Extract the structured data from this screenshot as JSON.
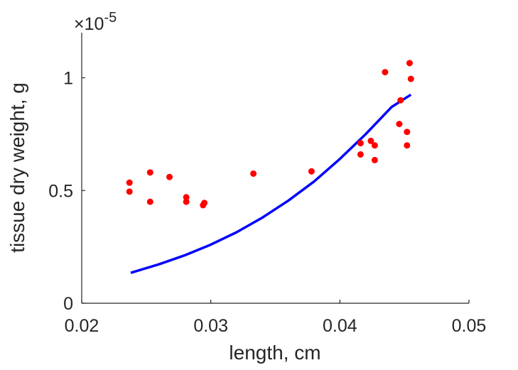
{
  "chart_data": {
    "type": "scatter",
    "xlabel": "length, cm",
    "ylabel": "tissue dry weight, g",
    "exponent_label": "×10",
    "exponent_power": "-5",
    "xlim": [
      0.02,
      0.05
    ],
    "ylim": [
      0,
      1.2
    ],
    "x_ticks": [
      "0.02",
      "0.03",
      "0.04",
      "0.05"
    ],
    "x_tick_values": [
      0.02,
      0.03,
      0.04,
      0.05
    ],
    "y_ticks": [
      "0",
      "0.5",
      "1"
    ],
    "y_tick_values": [
      0,
      0.5,
      1.0
    ],
    "grid": false,
    "series": [
      {
        "type": "scatter",
        "color": "#ff0000",
        "x": [
          0.0237,
          0.0237,
          0.0253,
          0.0253,
          0.0268,
          0.0281,
          0.0281,
          0.0294,
          0.0295,
          0.0333,
          0.0378,
          0.0416,
          0.0416,
          0.0424,
          0.0427,
          0.0427,
          0.0435,
          0.0446,
          0.0447,
          0.0452,
          0.0452,
          0.0454,
          0.0455
        ],
        "y": [
          0.535,
          0.495,
          0.58,
          0.45,
          0.56,
          0.47,
          0.45,
          0.435,
          0.445,
          0.575,
          0.585,
          0.71,
          0.66,
          0.72,
          0.7,
          0.635,
          1.025,
          0.795,
          0.9,
          0.76,
          0.7,
          1.065,
          0.995
        ]
      },
      {
        "type": "line",
        "color": "#0000ff",
        "x": [
          0.0238,
          0.026,
          0.028,
          0.03,
          0.032,
          0.034,
          0.036,
          0.038,
          0.04,
          0.042,
          0.044,
          0.0455
        ],
        "y": [
          0.135,
          0.173,
          0.213,
          0.26,
          0.315,
          0.38,
          0.455,
          0.54,
          0.64,
          0.75,
          0.87,
          0.925
        ]
      }
    ]
  }
}
